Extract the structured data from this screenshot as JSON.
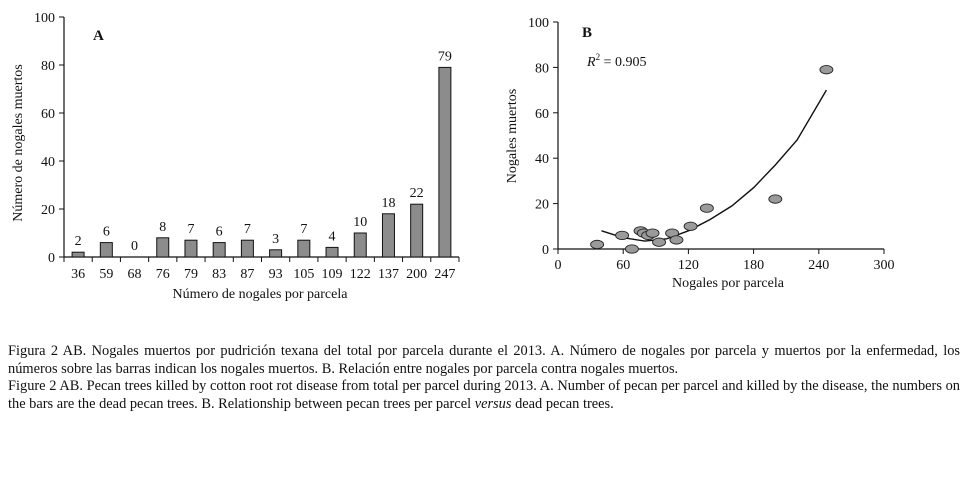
{
  "chart_data": [
    {
      "type": "bar",
      "panel_label": "A",
      "ylabel": "Número de nogales muertos",
      "xlabel": "Número de nogales por parcela",
      "ylim": [
        0,
        100
      ],
      "yticks": [
        0,
        20,
        40,
        60,
        80,
        100
      ],
      "categories": [
        "36",
        "59",
        "68",
        "76",
        "79",
        "83",
        "87",
        "93",
        "105",
        "109",
        "122",
        "137",
        "200",
        "247"
      ],
      "values": [
        2,
        6,
        0,
        8,
        7,
        6,
        7,
        3,
        7,
        4,
        10,
        18,
        22,
        79
      ],
      "data_labels": [
        "2",
        "6",
        "0",
        "8",
        "7",
        "6",
        "7",
        "3",
        "7",
        "4",
        "10",
        "18",
        "22",
        "79"
      ],
      "bar_color": "#8c8c8c",
      "grid": false
    },
    {
      "type": "scatter",
      "panel_label": "B",
      "ylabel": "Nogales muertos",
      "xlabel": "Nogales por parcela",
      "xlim": [
        0,
        300
      ],
      "ylim": [
        0,
        100
      ],
      "xticks": [
        0,
        60,
        120,
        180,
        240,
        300
      ],
      "yticks": [
        0,
        20,
        40,
        60,
        80,
        100
      ],
      "r2_label": "R",
      "r2_sup": "2",
      "r2_value": " = 0.905",
      "points": [
        {
          "x": 36,
          "y": 2
        },
        {
          "x": 59,
          "y": 6
        },
        {
          "x": 68,
          "y": 0
        },
        {
          "x": 76,
          "y": 8
        },
        {
          "x": 79,
          "y": 7
        },
        {
          "x": 83,
          "y": 6
        },
        {
          "x": 87,
          "y": 7
        },
        {
          "x": 93,
          "y": 3
        },
        {
          "x": 105,
          "y": 7
        },
        {
          "x": 109,
          "y": 4
        },
        {
          "x": 122,
          "y": 10
        },
        {
          "x": 137,
          "y": 18
        },
        {
          "x": 200,
          "y": 22
        },
        {
          "x": 247,
          "y": 79
        }
      ],
      "trend": [
        {
          "x": 40,
          "y": 8
        },
        {
          "x": 60,
          "y": 5
        },
        {
          "x": 80,
          "y": 3.5
        },
        {
          "x": 100,
          "y": 4.5
        },
        {
          "x": 120,
          "y": 8
        },
        {
          "x": 140,
          "y": 13
        },
        {
          "x": 160,
          "y": 19
        },
        {
          "x": 180,
          "y": 27
        },
        {
          "x": 200,
          "y": 37
        },
        {
          "x": 220,
          "y": 48
        },
        {
          "x": 247,
          "y": 70
        }
      ],
      "point_color": "#9a9a9a",
      "grid": false
    }
  ],
  "caption": {
    "es": "Figura 2 AB. Nogales muertos por pudrición texana del total por parcela durante el 2013. A. Número de nogales por parcela y muertos por la enfermedad, los números sobre las barras indican los nogales muertos. B. Relación entre nogales por parcela contra nogales muertos.",
    "en_main": "Figure 2 AB. Pecan trees killed by cotton root rot disease from total per parcel during 2013. A. Number of pecan per parcel and killed by the disease, the numbers on the bars are the dead pecan trees. B. Relationship between pecan trees per parcel ",
    "en_italic": "versus",
    "en_end": " dead pecan trees."
  }
}
